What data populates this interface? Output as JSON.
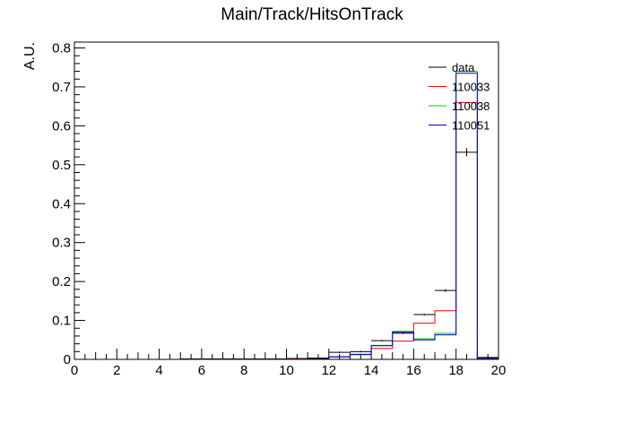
{
  "chart_data": {
    "type": "histogram",
    "title": "Main/Track/HitsOnTrack",
    "xlabel": "",
    "ylabel": "A.U.",
    "xlim": [
      0,
      20
    ],
    "ylim": [
      0,
      0.815
    ],
    "x_ticks": [
      "0",
      "2",
      "4",
      "6",
      "8",
      "10",
      "12",
      "14",
      "16",
      "18",
      "20"
    ],
    "y_ticks": [
      "0",
      "0.1",
      "0.2",
      "0.3",
      "0.4",
      "0.5",
      "0.6",
      "0.7",
      "0.8"
    ],
    "bin_edges": [
      0,
      1,
      2,
      3,
      4,
      5,
      6,
      7,
      8,
      9,
      10,
      11,
      12,
      13,
      14,
      15,
      16,
      17,
      18,
      19,
      20
    ],
    "legend_position": "top-right",
    "series": [
      {
        "name": "data",
        "color": "#000000",
        "style": "errorbar",
        "values": [
          0,
          0,
          0,
          0,
          0,
          0.001,
          0.001,
          0.001,
          0.001,
          0.001,
          0.002,
          0.003,
          0.018,
          0.02,
          0.048,
          0.067,
          0.115,
          0.177,
          0.532,
          0.005
        ]
      },
      {
        "name": "110033",
        "color": "#ff0000",
        "style": "step",
        "values": [
          0,
          0,
          0,
          0,
          0,
          0.001,
          0.001,
          0.001,
          0.001,
          0.001,
          0.001,
          0.002,
          0.006,
          0.012,
          0.028,
          0.047,
          0.093,
          0.125,
          0.66,
          0.003
        ]
      },
      {
        "name": "110038",
        "color": "#00cc00",
        "style": "step",
        "values": [
          0,
          0,
          0,
          0,
          0,
          0.001,
          0.001,
          0.001,
          0.001,
          0.001,
          0.002,
          0.003,
          0.007,
          0.013,
          0.036,
          0.072,
          0.053,
          0.067,
          0.74,
          0.003
        ]
      },
      {
        "name": "110051",
        "color": "#0000cc",
        "style": "step",
        "values": [
          0,
          0,
          0,
          0,
          0,
          0.001,
          0.001,
          0.001,
          0.001,
          0.001,
          0.002,
          0.003,
          0.007,
          0.013,
          0.035,
          0.07,
          0.05,
          0.063,
          0.735,
          0.003
        ]
      }
    ]
  }
}
